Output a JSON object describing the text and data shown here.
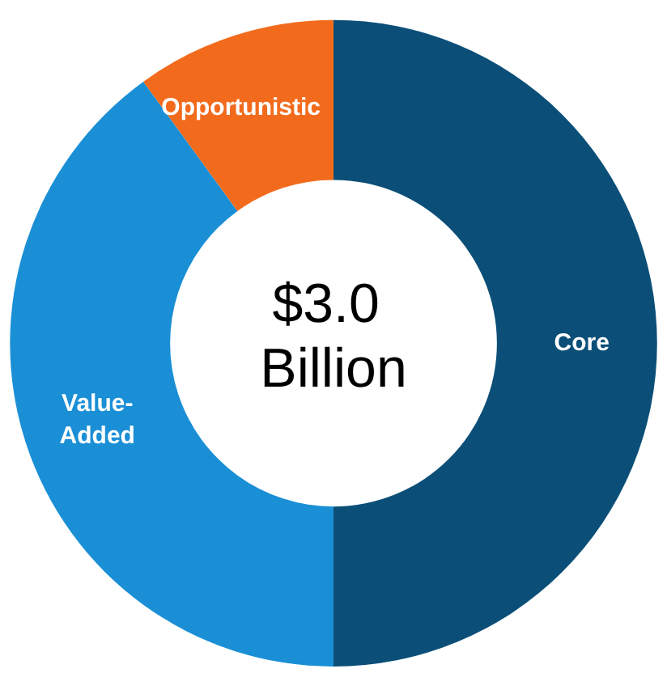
{
  "chart_data": {
    "type": "donut",
    "title": "$3.0 Billion",
    "categories": [
      "Core",
      "Value-Added",
      "Opportunistic"
    ],
    "values": [
      50,
      40,
      10
    ],
    "colors": [
      "#0b4f78",
      "#1a8fd6",
      "#f26b1d"
    ],
    "legend": false
  }
}
